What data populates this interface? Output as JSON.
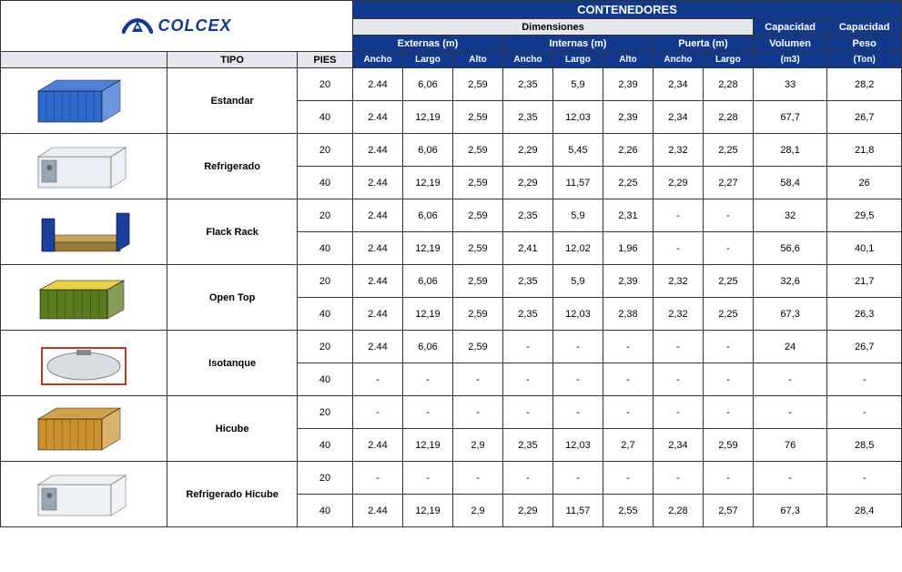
{
  "brand": {
    "name": "COLCEX"
  },
  "colors": {
    "header_blue": "#113a8e",
    "header_grey": "#e6e8ee",
    "border": "#333333",
    "text_white": "#ffffff",
    "text_black": "#000000"
  },
  "headers": {
    "title": "CONTENEDORES",
    "dimensiones": "Dimensiones",
    "capacidad": "Capacidad",
    "externas": "Externas (m)",
    "internas": "Internas (m)",
    "puerta": "Puerta (m)",
    "volumen": "Volumen",
    "peso": "Peso",
    "tipo": "TIPO",
    "pies": "PIES",
    "ancho": "Ancho",
    "largo": "Largo",
    "alto": "Alto",
    "m3": "(m3)",
    "ton": "(Ton)"
  },
  "container_colors": {
    "estandar": "#2f6bcf",
    "refrigerado": "#e8eef4",
    "flackrack": "#1b3f9e",
    "opentop": "#5b7c1e",
    "isotanque": "#d8dde2",
    "hicube": "#c9922d",
    "refrigerado_hicube": "#eef1f5"
  },
  "types": [
    {
      "key": "estandar",
      "name": "Estandar",
      "rows": [
        {
          "pies": "20",
          "ext_ancho": "2.44",
          "ext_largo": "6,06",
          "ext_alto": "2,59",
          "int_ancho": "2,35",
          "int_largo": "5,9",
          "int_alto": "2,39",
          "pta_ancho": "2,34",
          "pta_largo": "2,28",
          "vol": "33",
          "peso": "28,2"
        },
        {
          "pies": "40",
          "ext_ancho": "2.44",
          "ext_largo": "12,19",
          "ext_alto": "2,59",
          "int_ancho": "2,35",
          "int_largo": "12,03",
          "int_alto": "2,39",
          "pta_ancho": "2,34",
          "pta_largo": "2,28",
          "vol": "67,7",
          "peso": "26,7"
        }
      ]
    },
    {
      "key": "refrigerado",
      "name": "Refrigerado",
      "rows": [
        {
          "pies": "20",
          "ext_ancho": "2.44",
          "ext_largo": "6,06",
          "ext_alto": "2,59",
          "int_ancho": "2,29",
          "int_largo": "5,45",
          "int_alto": "2,26",
          "pta_ancho": "2,32",
          "pta_largo": "2,25",
          "vol": "28,1",
          "peso": "21,8"
        },
        {
          "pies": "40",
          "ext_ancho": "2.44",
          "ext_largo": "12,19",
          "ext_alto": "2,59",
          "int_ancho": "2,29",
          "int_largo": "11,57",
          "int_alto": "2,25",
          "pta_ancho": "2,29",
          "pta_largo": "2,27",
          "vol": "58,4",
          "peso": "26"
        }
      ]
    },
    {
      "key": "flackrack",
      "name": "Flack Rack",
      "rows": [
        {
          "pies": "20",
          "ext_ancho": "2.44",
          "ext_largo": "6,06",
          "ext_alto": "2,59",
          "int_ancho": "2,35",
          "int_largo": "5,9",
          "int_alto": "2,31",
          "pta_ancho": "-",
          "pta_largo": "-",
          "vol": "32",
          "peso": "29,5"
        },
        {
          "pies": "40",
          "ext_ancho": "2.44",
          "ext_largo": "12,19",
          "ext_alto": "2,59",
          "int_ancho": "2,41",
          "int_largo": "12,02",
          "int_alto": "1,96",
          "pta_ancho": "-",
          "pta_largo": "-",
          "vol": "56,6",
          "peso": "40,1"
        }
      ]
    },
    {
      "key": "opentop",
      "name": "Open Top",
      "rows": [
        {
          "pies": "20",
          "ext_ancho": "2.44",
          "ext_largo": "6,06",
          "ext_alto": "2,59",
          "int_ancho": "2,35",
          "int_largo": "5,9",
          "int_alto": "2,39",
          "pta_ancho": "2,32",
          "pta_largo": "2,25",
          "vol": "32,6",
          "peso": "21,7"
        },
        {
          "pies": "40",
          "ext_ancho": "2.44",
          "ext_largo": "12,19",
          "ext_alto": "2,59",
          "int_ancho": "2,35",
          "int_largo": "12,03",
          "int_alto": "2,38",
          "pta_ancho": "2,32",
          "pta_largo": "2,25",
          "vol": "67,3",
          "peso": "26,3"
        }
      ]
    },
    {
      "key": "isotanque",
      "name": "Isotanque",
      "rows": [
        {
          "pies": "20",
          "ext_ancho": "2.44",
          "ext_largo": "6,06",
          "ext_alto": "2,59",
          "int_ancho": "-",
          "int_largo": "-",
          "int_alto": "-",
          "pta_ancho": "-",
          "pta_largo": "-",
          "vol": "24",
          "peso": "26,7"
        },
        {
          "pies": "40",
          "ext_ancho": "-",
          "ext_largo": "-",
          "ext_alto": "-",
          "int_ancho": "-",
          "int_largo": "-",
          "int_alto": "-",
          "pta_ancho": "-",
          "pta_largo": "-",
          "vol": "-",
          "peso": "-"
        }
      ]
    },
    {
      "key": "hicube",
      "name": "Hicube",
      "rows": [
        {
          "pies": "20",
          "ext_ancho": "-",
          "ext_largo": "-",
          "ext_alto": "-",
          "int_ancho": "-",
          "int_largo": "-",
          "int_alto": "-",
          "pta_ancho": "-",
          "pta_largo": "-",
          "vol": "-",
          "peso": "-"
        },
        {
          "pies": "40",
          "ext_ancho": "2.44",
          "ext_largo": "12,19",
          "ext_alto": "2,9",
          "int_ancho": "2,35",
          "int_largo": "12,03",
          "int_alto": "2,7",
          "pta_ancho": "2,34",
          "pta_largo": "2,59",
          "vol": "76",
          "peso": "28,5"
        }
      ]
    },
    {
      "key": "refrigerado_hicube",
      "name": "Refrigerado Hicube",
      "rows": [
        {
          "pies": "20",
          "ext_ancho": "-",
          "ext_largo": "-",
          "ext_alto": "-",
          "int_ancho": "-",
          "int_largo": "-",
          "int_alto": "-",
          "pta_ancho": "-",
          "pta_largo": "-",
          "vol": "-",
          "peso": "-"
        },
        {
          "pies": "40",
          "ext_ancho": "2.44",
          "ext_largo": "12,19",
          "ext_alto": "2,9",
          "int_ancho": "2,29",
          "int_largo": "11,57",
          "int_alto": "2,55",
          "pta_ancho": "2,28",
          "pta_largo": "2,57",
          "vol": "67,3",
          "peso": "28,4"
        }
      ]
    }
  ]
}
